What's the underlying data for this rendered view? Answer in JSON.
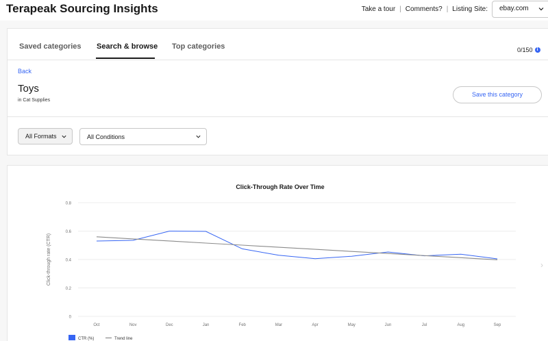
{
  "header": {
    "title": "Terapeak Sourcing Insights",
    "take_tour": "Take a tour",
    "comments": "Comments?",
    "listing_site_label": "Listing Site:",
    "listing_site_value": "ebay.com"
  },
  "tabs": [
    {
      "label": "Saved categories"
    },
    {
      "label": "Search & browse",
      "active": true
    },
    {
      "label": "Top categories"
    }
  ],
  "counter": "0/150",
  "back": "Back",
  "category": {
    "title": "Toys",
    "subtitle": "in Cat Supplies",
    "save_label": "Save this category"
  },
  "filters": {
    "format": "All Formats",
    "condition": "All Conditions"
  },
  "icons": {
    "info": "info-icon",
    "dropdown": "chevron-down-icon",
    "next": "chevron-right-icon"
  },
  "colors": {
    "accent": "#3665f3",
    "ctr_line": "#3665f3",
    "trend_line": "#8a8a8a"
  },
  "chart_data": {
    "type": "line",
    "title": "Click-Through Rate Over Time",
    "ylabel": "Click-through rate (CTR)",
    "xlabel": "",
    "categories": [
      "Oct",
      "Nov",
      "Dec",
      "Jan",
      "Feb",
      "Mar",
      "Apr",
      "May",
      "Jun",
      "Jul",
      "Aug",
      "Sep"
    ],
    "ylim": [
      0,
      0.8
    ],
    "yticks": [
      "0",
      "0.2",
      "0.4",
      "0.6",
      "0.8"
    ],
    "ytick_values": [
      0,
      0.2,
      0.4,
      0.6,
      0.8
    ],
    "grid": true,
    "legend_position": "bottom-left",
    "series": [
      {
        "name": "CTR (%)",
        "values": [
          0.53,
          0.535,
          0.6,
          0.598,
          0.475,
          0.43,
          0.406,
          0.423,
          0.453,
          0.426,
          0.437,
          0.405
        ]
      },
      {
        "name": "Trend line",
        "values": [
          0.56,
          0.5453,
          0.5306,
          0.5159,
          0.5012,
          0.4865,
          0.4718,
          0.4571,
          0.4424,
          0.4277,
          0.413,
          0.3983
        ]
      }
    ]
  }
}
